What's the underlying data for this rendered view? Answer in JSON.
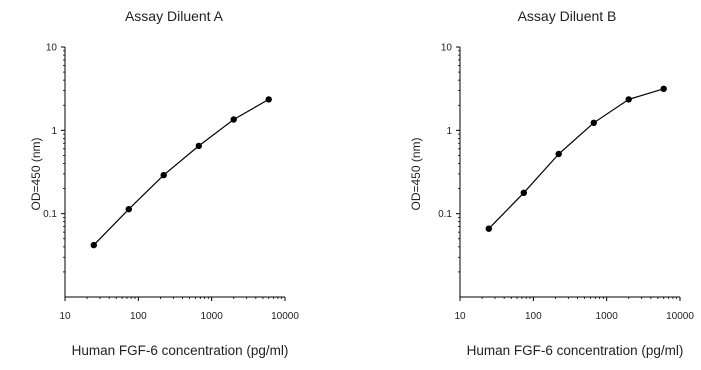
{
  "colors": {
    "line": "#000000",
    "axis": "#000000",
    "text": "#222222"
  },
  "chart_data": [
    {
      "type": "line",
      "title": "Assay Diluent A",
      "xlabel": "Human FGF-6 concentration (pg/ml)",
      "ylabel": "OD=450 (nm)",
      "xscale": "log",
      "yscale": "log",
      "xlim": [
        10,
        10000
      ],
      "ylim": [
        0.01,
        10
      ],
      "xticks": [
        10,
        100,
        1000,
        10000
      ],
      "xtick_labels": [
        "10",
        "100",
        "1000",
        "10000"
      ],
      "yticks": [
        0.1,
        1,
        10
      ],
      "ytick_labels": [
        "0.1",
        "1",
        "10"
      ],
      "grid": false,
      "markers": "filled-circle",
      "x": [
        24.7,
        74.1,
        222,
        667,
        2000,
        6000
      ],
      "y": [
        0.042,
        0.113,
        0.29,
        0.65,
        1.35,
        2.35
      ]
    },
    {
      "type": "line",
      "title": "Assay Diluent B",
      "xlabel": "Human FGF-6 concentration (pg/ml)",
      "ylabel": "OD=450 (nm)",
      "xscale": "log",
      "yscale": "log",
      "xlim": [
        10,
        10000
      ],
      "ylim": [
        0.01,
        10
      ],
      "xticks": [
        10,
        100,
        1000,
        10000
      ],
      "xtick_labels": [
        "10",
        "100",
        "1000",
        "10000"
      ],
      "yticks": [
        0.1,
        1,
        10
      ],
      "ytick_labels": [
        "0.1",
        "1",
        "10"
      ],
      "grid": false,
      "markers": "filled-circle",
      "x": [
        24.7,
        74.1,
        222,
        667,
        2000,
        6000
      ],
      "y": [
        0.066,
        0.178,
        0.52,
        1.23,
        2.35,
        3.15
      ]
    }
  ]
}
